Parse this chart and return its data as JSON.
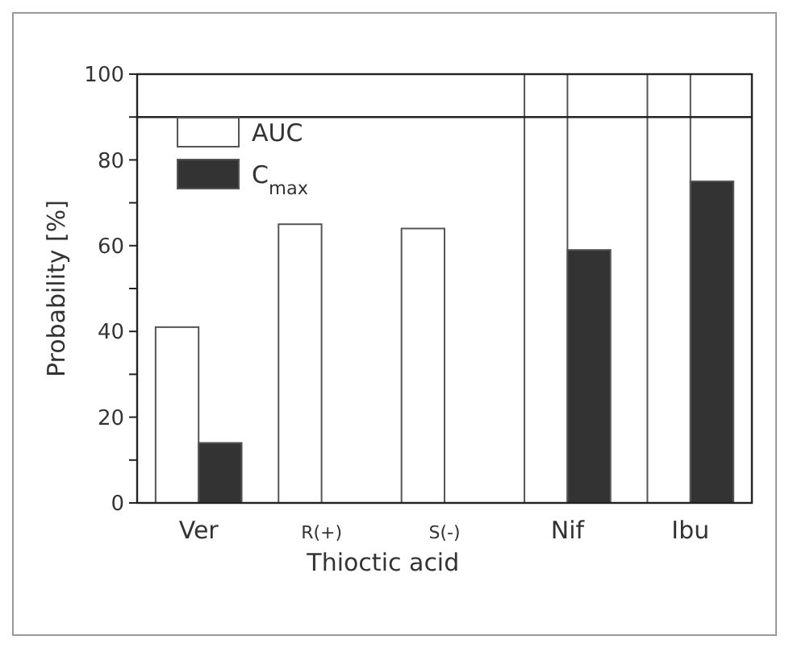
{
  "chart_data": {
    "type": "bar",
    "ylabel": "Probability [%]",
    "xlabel": "Thioctic acid",
    "categories": [
      "Ver",
      "R(+)",
      "S(-)",
      "Nif",
      "Ibu"
    ],
    "series": [
      {
        "name": "AUC",
        "color": "#ffffff",
        "values": [
          41,
          65,
          64,
          100,
          100
        ]
      },
      {
        "name": "C$_{max}$",
        "color": "#333333",
        "values": [
          14,
          null,
          null,
          59,
          75
        ]
      }
    ],
    "ylim": [
      0,
      100
    ],
    "yticks": [
      0,
      {
        "value": 10,
        "label": null
      },
      20,
      {
        "value": 30,
        "label": null
      },
      40,
      {
        "value": 50,
        "label": null
      },
      60,
      {
        "value": 70,
        "label": null
      },
      80,
      {
        "value": 90,
        "label": null
      },
      100
    ],
    "ref_lines": [
      {
        "axis": "y",
        "value": 90,
        "label": null
      }
    ],
    "legend": "top left",
    "grid": false
  }
}
